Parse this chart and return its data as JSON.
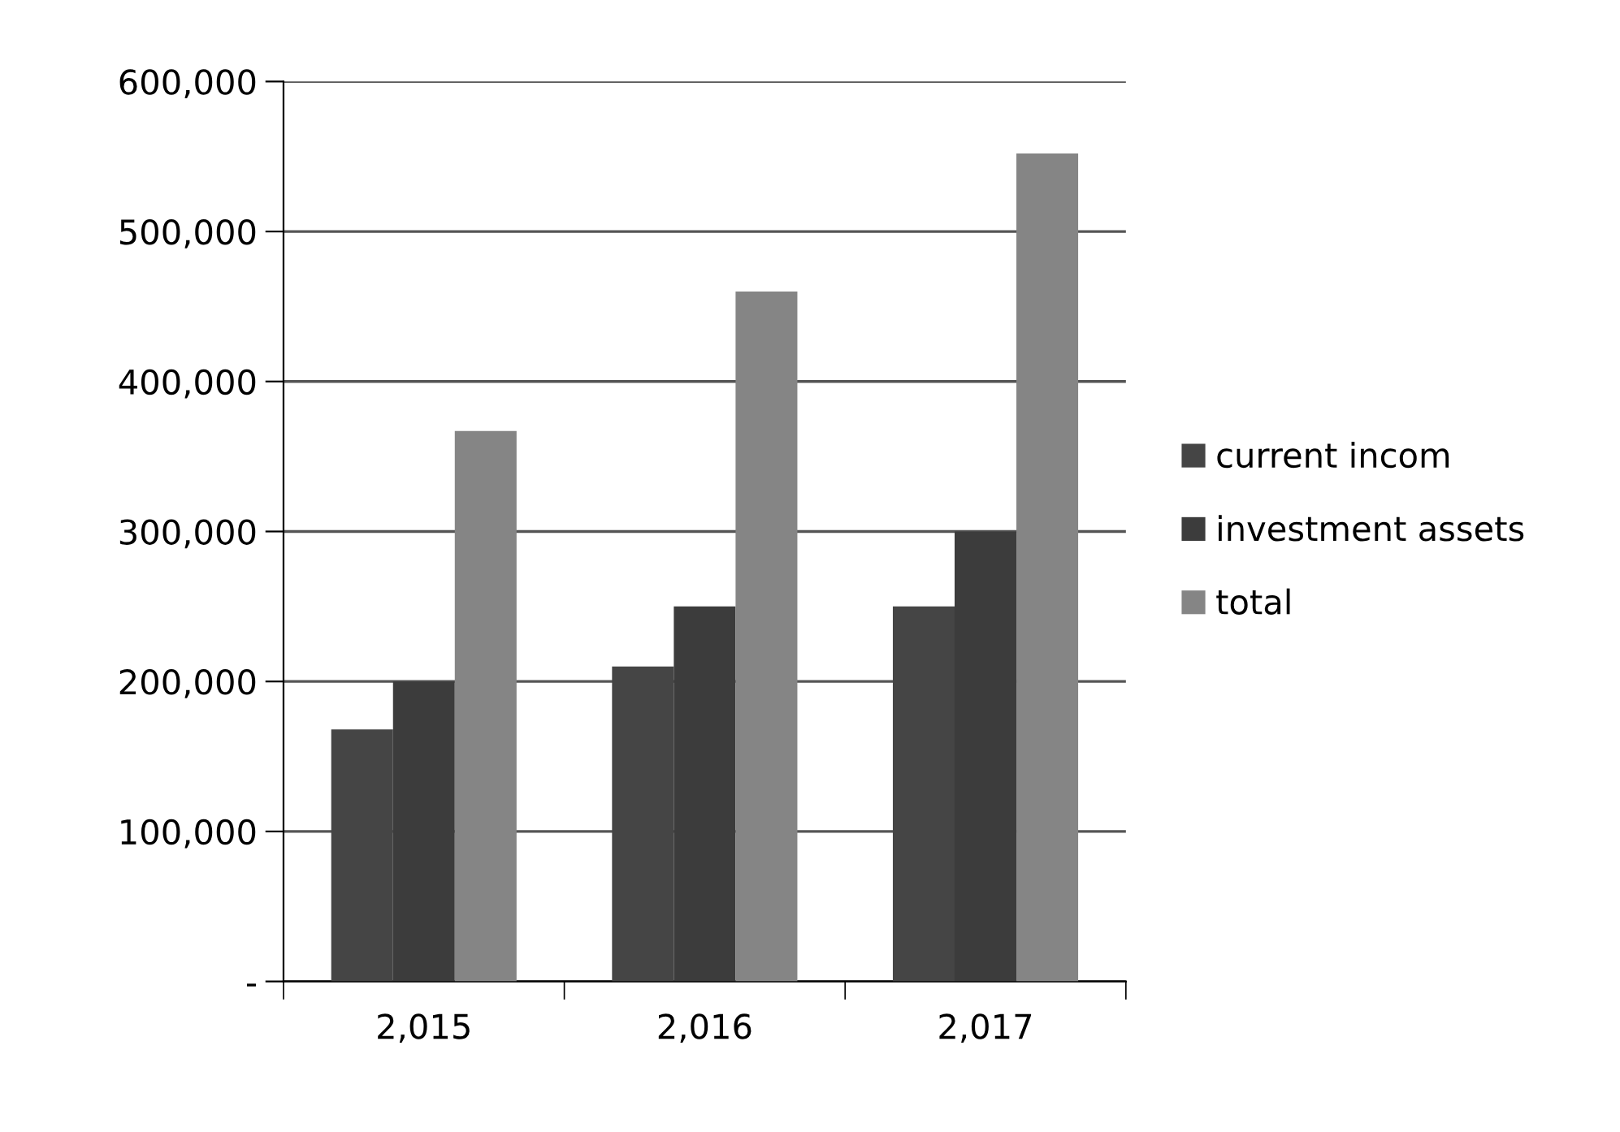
{
  "chart_data": {
    "type": "bar",
    "categories": [
      "2,015",
      "2,016",
      "2,017"
    ],
    "series": [
      {
        "name": "current incom",
        "color": "#454545",
        "values": [
          168000,
          210000,
          250000
        ]
      },
      {
        "name": "investment assets",
        "color": "#3c3c3c",
        "values": [
          200000,
          250000,
          300000
        ]
      },
      {
        "name": "total",
        "color": "#858585",
        "values": [
          367000,
          460000,
          552000
        ]
      }
    ],
    "ylim": [
      0,
      600000
    ],
    "yticks": [
      {
        "value": 0,
        "label": "-"
      },
      {
        "value": 100000,
        "label": "100,000"
      },
      {
        "value": 200000,
        "label": "200,000"
      },
      {
        "value": 300000,
        "label": "300,000"
      },
      {
        "value": 400000,
        "label": "400,000"
      },
      {
        "value": 500000,
        "label": "500,000"
      },
      {
        "value": 600000,
        "label": "600,000"
      }
    ],
    "grid": "y",
    "legend": "right"
  }
}
